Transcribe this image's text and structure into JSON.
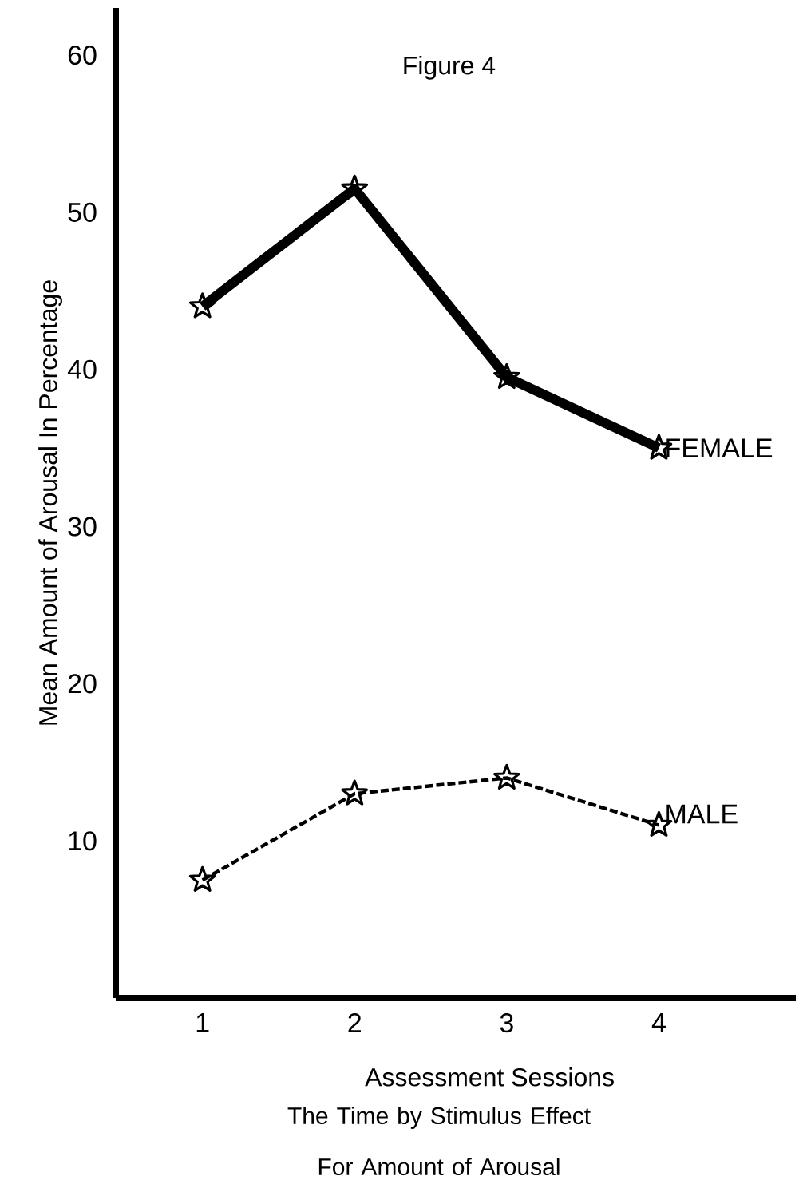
{
  "chart_data": {
    "type": "line",
    "title": "Figure 4",
    "xlabel": "Assessment Sessions",
    "ylabel": "Mean Amount of Arousal In Percentage",
    "annotations": [
      "The Time by Stimulus Effect For Amount of Arousal"
    ],
    "categories": [
      "1",
      "2",
      "3",
      "4"
    ],
    "series": [
      {
        "name": "FEMALE",
        "color": "#000000",
        "line_style": "solid",
        "values": [
          44,
          51.5,
          39.5,
          35
        ]
      },
      {
        "name": "MALE",
        "color": "#000000",
        "line_style": "dashed",
        "values": [
          7.5,
          13,
          14,
          11
        ]
      }
    ],
    "ylim": [
      0,
      63
    ],
    "yticks": [
      10,
      20,
      30,
      40,
      50,
      60
    ],
    "marker": "star",
    "grid": false,
    "legend": false
  }
}
